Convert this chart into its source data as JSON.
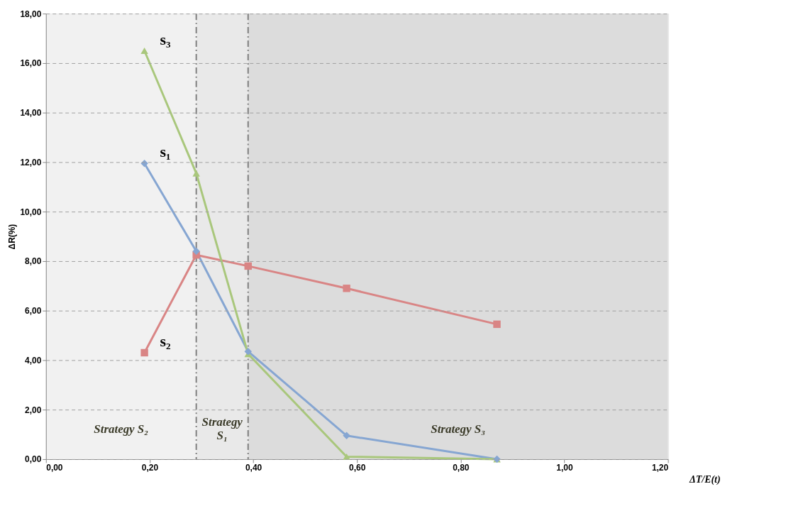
{
  "chart_data": {
    "type": "line",
    "xlabel": "ΔT/E(t)",
    "ylabel": "ΔR(%)",
    "xlim": [
      0,
      1.2
    ],
    "xticks": [
      {
        "value": 0,
        "label": "0,00"
      },
      {
        "value": 0.2,
        "label": "0,20"
      },
      {
        "value": 0.4,
        "label": "0,40"
      },
      {
        "value": 0.6,
        "label": "0,60"
      },
      {
        "value": 0.8,
        "label": "0,80"
      },
      {
        "value": 1.0,
        "label": "1,00"
      },
      {
        "value": 1.2,
        "label": "1,20"
      }
    ],
    "ylim": [
      0,
      18
    ],
    "yticks": [
      {
        "value": 0,
        "label": "0,00"
      },
      {
        "value": 2,
        "label": "2,00"
      },
      {
        "value": 4,
        "label": "4,00"
      },
      {
        "value": 6,
        "label": "6,00"
      },
      {
        "value": 8,
        "label": "8,00"
      },
      {
        "value": 10,
        "label": "10,00"
      },
      {
        "value": 12,
        "label": "12,00"
      },
      {
        "value": 14,
        "label": "14,00"
      },
      {
        "value": 16,
        "label": "16,00"
      },
      {
        "value": 18,
        "label": "18,00"
      }
    ],
    "x": [
      0.19,
      0.29,
      0.39,
      0.58,
      0.87
    ],
    "series": [
      {
        "name": "s₁",
        "color": "#86a6d2",
        "marker": "diamond",
        "values": [
          11.95,
          8.4,
          4.35,
          0.95,
          0
        ]
      },
      {
        "name": "s₂",
        "color": "#d98585",
        "marker": "square",
        "values": [
          4.3,
          8.25,
          7.8,
          6.9,
          5.45
        ]
      },
      {
        "name": "s₃",
        "color": "#a9c77c",
        "marker": "triangle",
        "values": [
          16.5,
          11.55,
          4.25,
          0.1,
          0
        ]
      }
    ],
    "bands": [
      {
        "axis": "x",
        "from": 0,
        "to": 0.29,
        "label": "Strategy S₂",
        "color": "#f1f1f1"
      },
      {
        "axis": "x",
        "from": 0.29,
        "to": 0.39,
        "label": "Strategy S₁",
        "color": "#e9e9e9"
      },
      {
        "axis": "x",
        "from": 0.39,
        "to": 1.2,
        "label": "Strategy S₃",
        "color": "#dcdcdc"
      }
    ],
    "ref_lines": [
      {
        "axis": "x",
        "value": 0.29,
        "color": "#808080",
        "line_style": "dashdot"
      },
      {
        "axis": "x",
        "value": 0.39,
        "color": "#808080",
        "line_style": "dashdot"
      }
    ],
    "grid": "y",
    "line_style": "solid"
  }
}
